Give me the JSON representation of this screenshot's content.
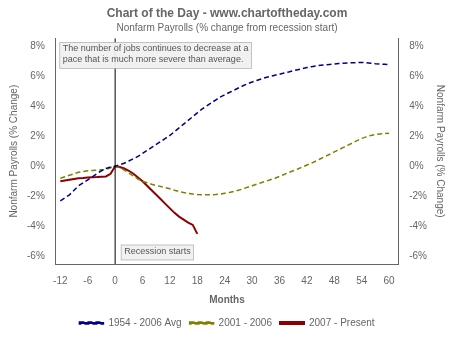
{
  "chart_data": {
    "type": "line",
    "title": "Chart of the Day - www.chartoftheday.com",
    "subtitle": "Nonfarm Payrolls (% change from recession start)",
    "xlabel": "Months",
    "ylabel": "Nonfarm Payrolls (% Change)",
    "y2label": "Nonfarm Payrolls (% Change)",
    "xlim": [
      -13,
      62
    ],
    "xticks": [
      -12,
      -6,
      0,
      6,
      12,
      18,
      24,
      30,
      36,
      42,
      48,
      54,
      60
    ],
    "ylim": [
      -6.5,
      8.5
    ],
    "yticks": [
      {
        "value": -6,
        "label": "-6%"
      },
      {
        "value": -4,
        "label": "-4%"
      },
      {
        "value": -2,
        "label": "-2%"
      },
      {
        "value": 0,
        "label": "0%"
      },
      {
        "value": 2,
        "label": "2%"
      },
      {
        "value": 4,
        "label": "4%"
      },
      {
        "value": 6,
        "label": "6%"
      },
      {
        "value": 8,
        "label": "8%"
      }
    ],
    "y2lim": [
      -6.5,
      8.5
    ],
    "y2ticks": [
      {
        "value": -6,
        "label": "-6%"
      },
      {
        "value": -4,
        "label": "-4%"
      },
      {
        "value": -2,
        "label": "-2%"
      },
      {
        "value": 0,
        "label": "0%"
      },
      {
        "value": 2,
        "label": "2%"
      },
      {
        "value": 4,
        "label": "4%"
      },
      {
        "value": 6,
        "label": "6%"
      },
      {
        "value": 8,
        "label": "8%"
      }
    ],
    "grid": false,
    "legend": "bottom",
    "vlines": [
      0
    ],
    "annotations": [
      {
        "text": "The number of jobs continues to decrease at a\npace that is much more severe than average."
      },
      {
        "text": "Recession starts",
        "x": 0
      }
    ],
    "series": [
      {
        "name": "1954 - 2006 Avg",
        "color": "#00008b",
        "line_style": "dashed",
        "x": [
          -12,
          -11,
          -10,
          -9,
          -8,
          -7,
          -6,
          -5,
          -4,
          -3,
          -2,
          -1,
          0,
          1,
          2,
          3,
          4,
          5,
          6,
          7,
          8,
          9,
          10,
          11,
          12,
          13,
          14,
          15,
          16,
          17,
          18,
          19,
          20,
          21,
          22,
          23,
          24,
          25,
          26,
          27,
          28,
          29,
          30,
          31,
          32,
          33,
          34,
          35,
          36,
          37,
          38,
          39,
          40,
          41,
          42,
          43,
          44,
          45,
          46,
          47,
          48,
          49,
          50,
          51,
          52,
          53,
          54,
          55,
          56,
          57,
          58,
          59,
          60
        ],
        "values": [
          -2.3,
          -2.1,
          -1.9,
          -1.6,
          -1.3,
          -1.1,
          -0.9,
          -0.7,
          -0.5,
          -0.3,
          -0.15,
          -0.05,
          0.0,
          0.1,
          0.2,
          0.35,
          0.5,
          0.65,
          0.85,
          1.05,
          1.25,
          1.45,
          1.65,
          1.85,
          2.05,
          2.3,
          2.55,
          2.8,
          3.05,
          3.3,
          3.55,
          3.8,
          4.0,
          4.2,
          4.4,
          4.6,
          4.75,
          4.9,
          5.05,
          5.2,
          5.35,
          5.48,
          5.6,
          5.7,
          5.8,
          5.9,
          5.97,
          6.05,
          6.12,
          6.2,
          6.27,
          6.35,
          6.42,
          6.49,
          6.56,
          6.62,
          6.67,
          6.71,
          6.74,
          6.77,
          6.8,
          6.83,
          6.85,
          6.87,
          6.88,
          6.89,
          6.9,
          6.88,
          6.85,
          6.82,
          6.8,
          6.78,
          6.75
        ]
      },
      {
        "name": "2001 - 2006",
        "color": "#808000",
        "line_style": "dashed",
        "x": [
          -12,
          -11,
          -10,
          -9,
          -8,
          -7,
          -6,
          -5,
          -4,
          -3,
          -2,
          -1,
          0,
          1,
          2,
          3,
          4,
          5,
          6,
          7,
          8,
          9,
          10,
          11,
          12,
          13,
          14,
          15,
          16,
          17,
          18,
          19,
          20,
          21,
          22,
          23,
          24,
          25,
          26,
          27,
          28,
          29,
          30,
          31,
          32,
          33,
          34,
          35,
          36,
          37,
          38,
          39,
          40,
          41,
          42,
          43,
          44,
          45,
          46,
          47,
          48,
          49,
          50,
          51,
          52,
          53,
          54,
          55,
          56,
          57,
          58,
          59,
          60
        ],
        "values": [
          -0.8,
          -0.7,
          -0.6,
          -0.5,
          -0.4,
          -0.35,
          -0.3,
          -0.28,
          -0.26,
          -0.24,
          -0.22,
          -0.1,
          0.0,
          -0.1,
          -0.25,
          -0.45,
          -0.65,
          -0.85,
          -1.0,
          -1.1,
          -1.2,
          -1.28,
          -1.35,
          -1.42,
          -1.5,
          -1.6,
          -1.68,
          -1.75,
          -1.8,
          -1.85,
          -1.88,
          -1.9,
          -1.9,
          -1.9,
          -1.88,
          -1.85,
          -1.8,
          -1.75,
          -1.68,
          -1.6,
          -1.5,
          -1.4,
          -1.3,
          -1.2,
          -1.1,
          -1.0,
          -0.9,
          -0.8,
          -0.68,
          -0.55,
          -0.42,
          -0.3,
          -0.18,
          -0.05,
          0.08,
          0.2,
          0.35,
          0.5,
          0.65,
          0.8,
          0.95,
          1.1,
          1.25,
          1.4,
          1.55,
          1.7,
          1.85,
          1.95,
          2.05,
          2.1,
          2.15,
          2.18,
          2.2
        ]
      },
      {
        "name": "2007 - Present",
        "color": "#8b0000",
        "line_style": "solid",
        "x": [
          -12,
          -11,
          -10,
          -9,
          -8,
          -7,
          -6,
          -5,
          -4,
          -3,
          -2,
          -1,
          0,
          1,
          2,
          3,
          4,
          5,
          6,
          7,
          8,
          9,
          10,
          11,
          12,
          13,
          14,
          15,
          16,
          17,
          18
        ],
        "values": [
          -1.0,
          -0.95,
          -0.9,
          -0.85,
          -0.8,
          -0.78,
          -0.75,
          -0.73,
          -0.72,
          -0.7,
          -0.68,
          -0.5,
          0.0,
          -0.05,
          -0.15,
          -0.3,
          -0.5,
          -0.75,
          -1.0,
          -1.3,
          -1.6,
          -1.9,
          -2.2,
          -2.5,
          -2.8,
          -3.1,
          -3.35,
          -3.55,
          -3.75,
          -3.9,
          -4.5
        ]
      }
    ]
  }
}
